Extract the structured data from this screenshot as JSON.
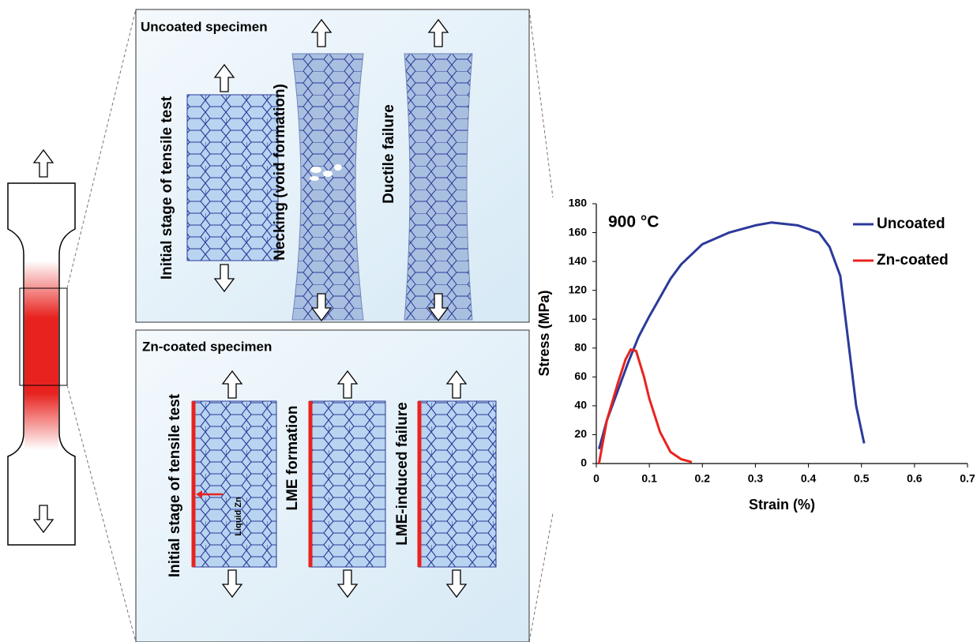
{
  "diagram": {
    "panels": [
      {
        "title": "Uncoated specimen",
        "stages": [
          "Initial stage of tensile test",
          "Necking (void formation)",
          "Ductile failure"
        ]
      },
      {
        "title": "Zn-coated specimen",
        "stages": [
          "Initial stage of tensile test",
          "LME formation",
          "LME-induced failure"
        ]
      }
    ],
    "liquid_label": "Liquid Zn"
  },
  "chart_data": {
    "type": "line",
    "annotation": "900 °C",
    "x_label": "Strain (%)",
    "y_label": "Stress (MPa)",
    "xlim": [
      0,
      0.7
    ],
    "xticks": [
      0,
      0.1,
      0.2,
      0.3,
      0.4,
      0.5,
      0.6,
      0.7
    ],
    "ylim": [
      0,
      180
    ],
    "yticks": [
      0,
      20,
      40,
      60,
      80,
      100,
      120,
      140,
      160,
      180
    ],
    "grid": false,
    "legend": "upper right",
    "series": [
      {
        "name": "Uncoated",
        "color": "#2b3a9a",
        "x": [
          0.005,
          0.02,
          0.04,
          0.06,
          0.08,
          0.1,
          0.12,
          0.14,
          0.16,
          0.2,
          0.25,
          0.3,
          0.33,
          0.38,
          0.42,
          0.44,
          0.46,
          0.47,
          0.48,
          0.49,
          0.505
        ],
        "values": [
          10,
          30,
          50,
          70,
          88,
          102,
          115,
          128,
          138,
          152,
          160,
          165,
          167,
          165,
          160,
          150,
          130,
          100,
          70,
          40,
          14
        ]
      },
      {
        "name": "Zn-coated",
        "color": "#e8231f",
        "x": [
          0.005,
          0.01,
          0.02,
          0.04,
          0.055,
          0.065,
          0.075,
          0.09,
          0.1,
          0.12,
          0.14,
          0.16,
          0.18
        ],
        "values": [
          0,
          10,
          30,
          55,
          72,
          79,
          78,
          60,
          45,
          22,
          8,
          3,
          1
        ]
      }
    ]
  }
}
